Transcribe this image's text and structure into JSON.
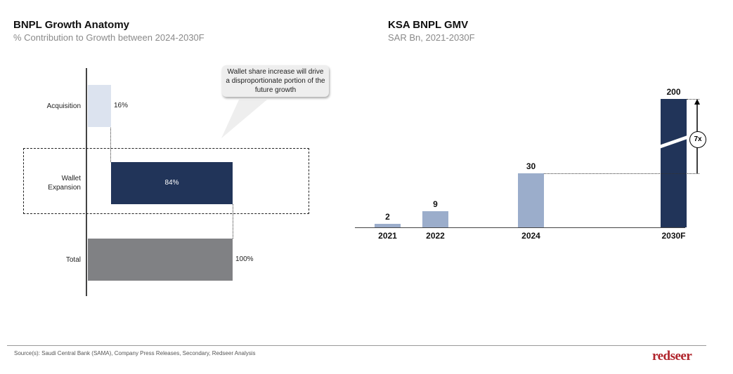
{
  "chart_data": [
    {
      "type": "bar",
      "orientation": "horizontal-waterfall",
      "title": "BNPL Growth Anatomy",
      "subtitle": "% Contribution to Growth between 2024-2030F",
      "categories": [
        "Acquisition",
        "Wallet Expansion",
        "Total"
      ],
      "values": [
        16,
        84,
        100
      ],
      "data_labels": [
        "16%",
        "84%",
        "100%"
      ],
      "colors": [
        "#dce3ef",
        "#213459",
        "#808184"
      ],
      "annotation": "Wallet share increase will drive a disproportionate portion of the future growth",
      "highlight": "Wallet Expansion"
    },
    {
      "type": "bar",
      "title": "KSA BNPL GMV",
      "subtitle": "SAR Bn, 2021-2030F",
      "categories": [
        "2021",
        "2022",
        "2024",
        "2030F"
      ],
      "values": [
        2,
        9,
        30,
        200
      ],
      "data_labels": [
        "2",
        "9",
        "30",
        "200"
      ],
      "colors": [
        "#9badcb",
        "#9badcb",
        "#9badcb",
        "#213459"
      ],
      "broken_axis_bar": "2030F",
      "growth_annotation": "7x"
    }
  ],
  "footer": {
    "source": "Source(s): Saudi Central Bank (SAMA), Company Press Releases, Secondary, Redseer Analysis",
    "logo": "redseer"
  }
}
